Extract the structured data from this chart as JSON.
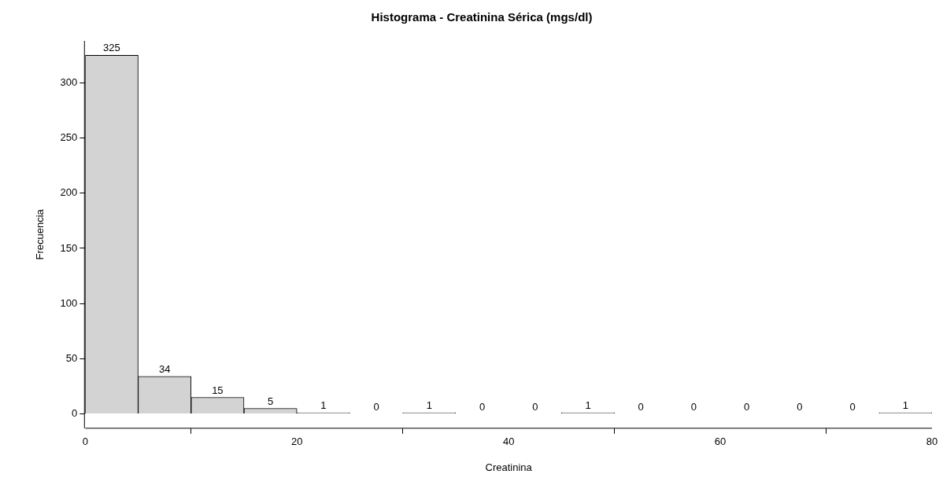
{
  "chart_data": {
    "type": "histogram",
    "title": "Histograma - Creatinina Sérica (mgs/dl)",
    "xlabel": "Creatinina",
    "ylabel": "Frecuencia",
    "bins": [
      0,
      5,
      10,
      15,
      20,
      25,
      30,
      35,
      40,
      45,
      50,
      55,
      60,
      65,
      70,
      75,
      80
    ],
    "values": [
      325,
      34,
      15,
      5,
      1,
      0,
      1,
      0,
      0,
      1,
      0,
      0,
      0,
      0,
      0,
      1
    ],
    "color": "#d3d3d3",
    "xlim": [
      0,
      80
    ],
    "xticks": [
      0,
      20,
      40,
      60,
      80
    ],
    "ylim": [
      -13,
      338
    ],
    "yticks": [
      0,
      50,
      100,
      150,
      200,
      250,
      300
    ],
    "data_labels": true,
    "legend": false
  }
}
